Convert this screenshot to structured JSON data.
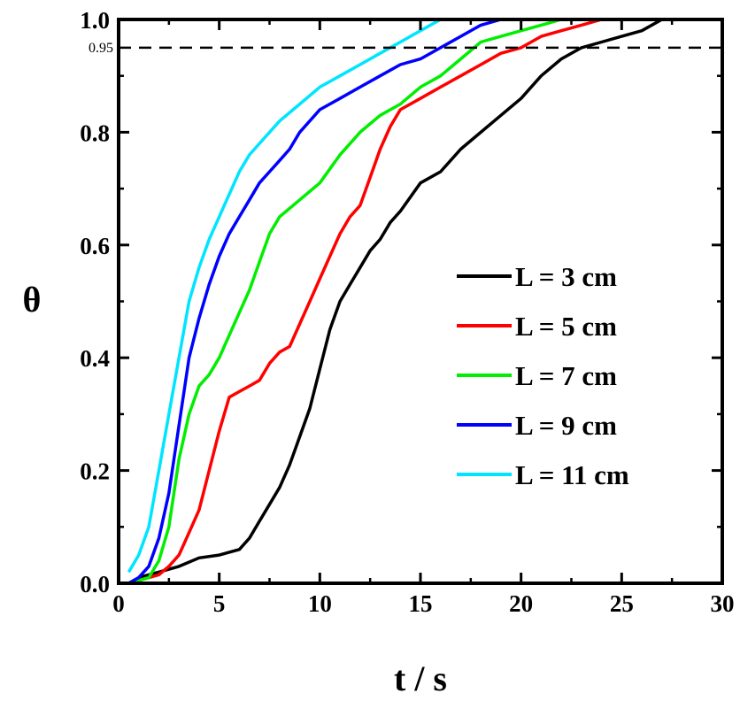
{
  "chart_data": {
    "type": "line",
    "title": "",
    "xlabel": "t / s",
    "ylabel": "θ",
    "xlim": [
      0,
      30
    ],
    "ylim": [
      0,
      1.0
    ],
    "x_ticks": [
      0,
      5,
      10,
      15,
      20,
      25,
      30
    ],
    "x_tick_labels": [
      "0",
      "5",
      "10",
      "15",
      "20",
      "25",
      "30"
    ],
    "y_ticks": [
      0,
      0.2,
      0.4,
      0.6,
      0.8,
      1.0
    ],
    "y_tick_labels": [
      "0.0",
      "0.2",
      "0.4",
      "0.6",
      "0.8",
      "1.0"
    ],
    "grid": false,
    "legend_position": "right",
    "reference_line": {
      "y": 0.95,
      "label": "0.95",
      "style": "dashed"
    },
    "series": [
      {
        "name": "L = 3 cm",
        "color": "#000000",
        "x": [
          0.5,
          1,
          2,
          3,
          4,
          5,
          6,
          6.5,
          7,
          7.5,
          8,
          8.5,
          9,
          9.5,
          10,
          10.5,
          11,
          11.5,
          12,
          12.5,
          13,
          13.5,
          14,
          15,
          16,
          17,
          18,
          19,
          20,
          21,
          22,
          23,
          24,
          25,
          26,
          27,
          28,
          30
        ],
        "y": [
          0.0,
          0.01,
          0.02,
          0.03,
          0.045,
          0.05,
          0.06,
          0.08,
          0.11,
          0.14,
          0.17,
          0.21,
          0.26,
          0.31,
          0.38,
          0.45,
          0.5,
          0.53,
          0.56,
          0.59,
          0.61,
          0.64,
          0.66,
          0.71,
          0.73,
          0.77,
          0.8,
          0.83,
          0.86,
          0.9,
          0.93,
          0.95,
          0.96,
          0.97,
          0.98,
          1.0,
          1.0,
          1.0
        ]
      },
      {
        "name": "L = 5 cm",
        "color": "#ff0000",
        "x": [
          0.5,
          1,
          1.5,
          2,
          2.5,
          3,
          3.5,
          4,
          4.5,
          5,
          5.5,
          6,
          6.5,
          7,
          7.5,
          8,
          8.5,
          9,
          9.5,
          10,
          10.5,
          11,
          11.5,
          12,
          12.5,
          13,
          13.5,
          14,
          15,
          16,
          17,
          18,
          19,
          20,
          21,
          22,
          23,
          24,
          30
        ],
        "y": [
          0.0,
          0.005,
          0.01,
          0.015,
          0.03,
          0.05,
          0.09,
          0.13,
          0.2,
          0.27,
          0.33,
          0.34,
          0.35,
          0.36,
          0.39,
          0.41,
          0.42,
          0.46,
          0.5,
          0.54,
          0.58,
          0.62,
          0.65,
          0.67,
          0.72,
          0.77,
          0.81,
          0.84,
          0.86,
          0.88,
          0.9,
          0.92,
          0.94,
          0.95,
          0.97,
          0.98,
          0.99,
          1.0,
          1.0
        ]
      },
      {
        "name": "L = 7 cm",
        "color": "#00ee00",
        "x": [
          0.5,
          1,
          1.5,
          2,
          2.5,
          3,
          3.5,
          4,
          4.5,
          5,
          5.5,
          6,
          6.5,
          7,
          7.5,
          8,
          9,
          10,
          11,
          12,
          13,
          14,
          15,
          16,
          17,
          18,
          19,
          20,
          21,
          22,
          23,
          30
        ],
        "y": [
          0.0,
          0.005,
          0.01,
          0.04,
          0.1,
          0.22,
          0.3,
          0.35,
          0.37,
          0.4,
          0.44,
          0.48,
          0.52,
          0.57,
          0.62,
          0.65,
          0.68,
          0.71,
          0.76,
          0.8,
          0.83,
          0.85,
          0.88,
          0.9,
          0.93,
          0.96,
          0.97,
          0.98,
          0.99,
          1.0,
          1.0,
          1.0
        ]
      },
      {
        "name": "L = 9 cm",
        "color": "#0000ff",
        "x": [
          0.5,
          1,
          1.5,
          2,
          2.5,
          3,
          3.5,
          4,
          4.5,
          5,
          5.5,
          6,
          6.5,
          7,
          7.5,
          8,
          8.5,
          9,
          10,
          11,
          12,
          13,
          14,
          15,
          16,
          17,
          18,
          19,
          20,
          30
        ],
        "y": [
          0.0,
          0.01,
          0.03,
          0.08,
          0.16,
          0.28,
          0.4,
          0.47,
          0.53,
          0.58,
          0.62,
          0.65,
          0.68,
          0.71,
          0.73,
          0.75,
          0.77,
          0.8,
          0.84,
          0.86,
          0.88,
          0.9,
          0.92,
          0.93,
          0.95,
          0.97,
          0.99,
          1.0,
          1.0,
          1.0
        ]
      },
      {
        "name": "L = 11 cm",
        "color": "#00e5ff",
        "x": [
          0.5,
          1,
          1.5,
          2,
          2.5,
          3,
          3.5,
          4,
          4.5,
          5,
          5.5,
          6,
          6.5,
          7,
          7.5,
          8,
          9,
          10,
          11,
          12,
          13,
          14,
          15,
          16,
          17,
          30
        ],
        "y": [
          0.02,
          0.05,
          0.1,
          0.2,
          0.3,
          0.4,
          0.5,
          0.56,
          0.61,
          0.65,
          0.69,
          0.73,
          0.76,
          0.78,
          0.8,
          0.82,
          0.85,
          0.88,
          0.9,
          0.92,
          0.94,
          0.96,
          0.98,
          1.0,
          1.0,
          1.0
        ]
      }
    ]
  }
}
